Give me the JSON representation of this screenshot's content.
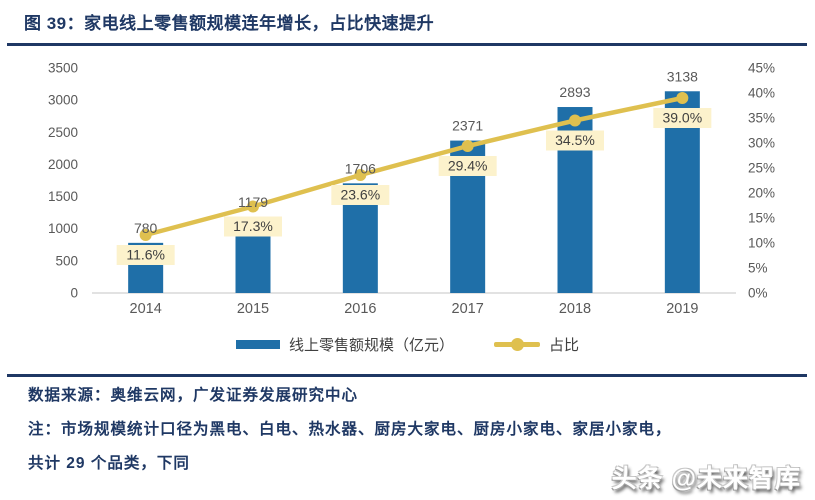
{
  "title": {
    "text": "图 39：家电线上零售额规模连年增长，占比快速提升"
  },
  "chart_data": {
    "type": "bar",
    "subtype": "combo-bar-line-dual-axis",
    "title": "家电线上零售额规模连年增长，占比快速提升",
    "categories": [
      "2014",
      "2015",
      "2016",
      "2017",
      "2018",
      "2019"
    ],
    "series": [
      {
        "name": "线上零售额规模（亿元）",
        "type": "bar",
        "axis": "left",
        "values": [
          780,
          1179,
          1706,
          2371,
          2893,
          3138
        ],
        "color": "#1F6FA8"
      },
      {
        "name": "占比",
        "type": "line",
        "axis": "right",
        "values": [
          11.6,
          17.3,
          23.6,
          29.4,
          34.5,
          39.0
        ],
        "labels": [
          "11.6%",
          "17.3%",
          "23.6%",
          "29.4%",
          "34.5%",
          "39.0%"
        ],
        "color": "#DFC04F"
      }
    ],
    "left_axis": {
      "min": 0,
      "max": 3500,
      "ticks": [
        0,
        500,
        1000,
        1500,
        2000,
        2500,
        3000,
        3500
      ]
    },
    "right_axis": {
      "min": 0,
      "max": 45,
      "ticks": [
        "0%",
        "5%",
        "10%",
        "15%",
        "20%",
        "25%",
        "30%",
        "35%",
        "40%",
        "45%"
      ]
    },
    "grid": false,
    "legend_position": "bottom",
    "colors": {
      "axis_line": "#D9D9D9",
      "label_bg": "#FCF2CC",
      "tick_text": "#595959",
      "value_text": "#595959",
      "pct_text": "#404040"
    }
  },
  "footer": {
    "source": "数据来源：奥维云网，广发证券发展研究中心",
    "note_line1": "注：市场规模统计口径为黑电、白电、热水器、厨房大家电、厨房小家电、家居小家电，",
    "note_line2": "共计 29 个品类，下同"
  },
  "watermark": {
    "text": "头条 @未来智库"
  },
  "theme": {
    "heading_color": "#1F3864",
    "rule_color": "#1F3864"
  }
}
